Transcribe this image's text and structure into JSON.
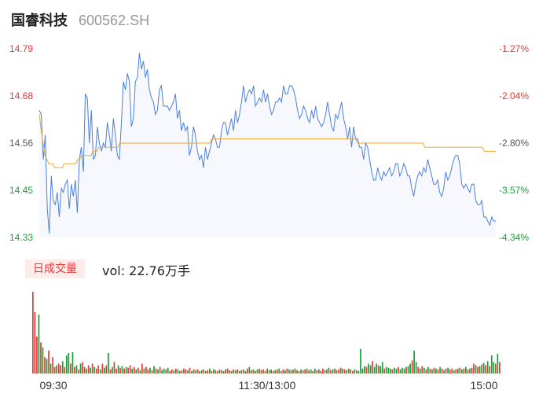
{
  "stock": {
    "name": "国睿科技",
    "code": "600562.SH"
  },
  "chart_data": [
    {
      "type": "line",
      "title": "",
      "y_left_ticks": [
        "14.79",
        "14.68",
        "14.56",
        "14.45",
        "14.33"
      ],
      "y_right_ticks": [
        "-1.27%",
        "-2.04%",
        "-2.80%",
        "-3.57%",
        "-4.34%"
      ],
      "ylim": [
        14.33,
        14.79
      ],
      "series": [
        {
          "color": "#4a7fe0",
          "values": [
            14.64,
            14.63,
            14.52,
            14.58,
            14.4,
            14.34,
            14.48,
            14.42,
            14.41,
            14.44,
            14.38,
            14.45,
            14.44,
            14.46,
            14.47,
            14.4,
            14.46,
            14.43,
            14.47,
            14.39,
            14.52,
            14.55,
            14.49,
            14.68,
            14.67,
            14.56,
            14.64,
            14.52,
            14.53,
            14.6,
            14.56,
            14.54,
            14.56,
            14.55,
            14.61,
            14.58,
            14.54,
            14.62,
            14.58,
            14.53,
            14.52,
            14.61,
            14.71,
            14.69,
            14.73,
            14.71,
            14.6,
            14.62,
            14.71,
            14.72,
            14.78,
            14.74,
            14.76,
            14.72,
            14.74,
            14.69,
            14.67,
            14.66,
            14.63,
            14.64,
            14.69,
            14.7,
            14.65,
            14.65,
            14.65,
            14.64,
            14.65,
            14.66,
            14.68,
            14.62,
            14.64,
            14.59,
            14.61,
            14.59,
            14.6,
            14.53,
            14.55,
            14.6,
            14.58,
            14.54,
            14.52,
            14.53,
            14.5,
            14.55,
            14.52,
            14.54,
            14.56,
            14.58,
            14.57,
            14.55,
            14.55,
            14.59,
            14.61,
            14.61,
            14.58,
            14.6,
            14.62,
            14.59,
            14.64,
            14.61,
            14.63,
            14.66,
            14.7,
            14.66,
            14.68,
            14.69,
            14.68,
            14.7,
            14.65,
            14.66,
            14.67,
            14.66,
            14.69,
            14.66,
            14.68,
            14.65,
            14.63,
            14.64,
            14.66,
            14.66,
            14.67,
            14.66,
            14.7,
            14.68,
            14.68,
            14.7,
            14.7,
            14.69,
            14.67,
            14.64,
            14.62,
            14.63,
            14.65,
            14.64,
            14.62,
            14.61,
            14.64,
            14.62,
            14.65,
            14.62,
            14.61,
            14.6,
            14.61,
            14.63,
            14.66,
            14.63,
            14.6,
            14.59,
            14.63,
            14.62,
            14.64,
            14.66,
            14.62,
            14.6,
            14.57,
            14.6,
            14.55,
            14.6,
            14.57,
            14.57,
            14.55,
            14.55,
            14.52,
            14.56,
            14.55,
            14.52,
            14.49,
            14.47,
            14.47,
            14.5,
            14.48,
            14.47,
            14.49,
            14.48,
            14.49,
            14.5,
            14.48,
            14.49,
            14.51,
            14.51,
            14.48,
            14.49,
            14.51,
            14.5,
            14.48,
            14.48,
            14.45,
            14.43,
            14.46,
            14.48,
            14.49,
            14.48,
            14.5,
            14.49,
            14.52,
            14.5,
            14.48,
            14.46,
            14.46,
            14.47,
            14.44,
            14.43,
            14.45,
            14.49,
            14.47,
            14.48,
            14.5,
            14.52,
            14.53,
            14.53,
            14.51,
            14.46,
            14.45,
            14.46,
            14.45,
            14.44,
            14.46,
            14.46,
            14.42,
            14.41,
            14.41,
            14.42,
            14.38,
            14.38,
            14.37,
            14.36,
            14.38,
            14.37,
            14.37
          ]
        },
        {
          "color": "#f5a623",
          "values": [
            14.63,
            14.59,
            14.56,
            14.53,
            14.52,
            14.51,
            14.51,
            14.51,
            14.5,
            14.5,
            14.5,
            14.5,
            14.5,
            14.51,
            14.51,
            14.51,
            14.51,
            14.51,
            14.51,
            14.51,
            14.52,
            14.52,
            14.53,
            14.53,
            14.53,
            14.53,
            14.53,
            14.53,
            14.54,
            14.54,
            14.54,
            14.55,
            14.55,
            14.55,
            14.55,
            14.55,
            14.55,
            14.55,
            14.55,
            14.55,
            14.55,
            14.55,
            14.56,
            14.56,
            14.56,
            14.56,
            14.56,
            14.56,
            14.56,
            14.56,
            14.56,
            14.56,
            14.56,
            14.56,
            14.56,
            14.56,
            14.56,
            14.56,
            14.56,
            14.56,
            14.56,
            14.56,
            14.56,
            14.56,
            14.56,
            14.56,
            14.56,
            14.56,
            14.56,
            14.56,
            14.56,
            14.56,
            14.56,
            14.56,
            14.56,
            14.56,
            14.56,
            14.56,
            14.56,
            14.56,
            14.56,
            14.56,
            14.56,
            14.56,
            14.56,
            14.56,
            14.56,
            14.56,
            14.56,
            14.56,
            14.57,
            14.57,
            14.57,
            14.57,
            14.57,
            14.57,
            14.57,
            14.57,
            14.57,
            14.57,
            14.57,
            14.57,
            14.57,
            14.57,
            14.57,
            14.57,
            14.57,
            14.57,
            14.57,
            14.57,
            14.57,
            14.57,
            14.57,
            14.57,
            14.57,
            14.57,
            14.57,
            14.57,
            14.57,
            14.57,
            14.57,
            14.57,
            14.57,
            14.57,
            14.57,
            14.57,
            14.57,
            14.57,
            14.57,
            14.57,
            14.57,
            14.57,
            14.57,
            14.57,
            14.57,
            14.57,
            14.57,
            14.57,
            14.57,
            14.57,
            14.57,
            14.57,
            14.57,
            14.57,
            14.57,
            14.57,
            14.57,
            14.57,
            14.57,
            14.57,
            14.57,
            14.57,
            14.57,
            14.57,
            14.57,
            14.57,
            14.57,
            14.57,
            14.57,
            14.57,
            14.57,
            14.57,
            14.57,
            14.57,
            14.57,
            14.57,
            14.56,
            14.56,
            14.56,
            14.56,
            14.56,
            14.56,
            14.56,
            14.56,
            14.56,
            14.56,
            14.56,
            14.56,
            14.56,
            14.56,
            14.56,
            14.56,
            14.56,
            14.56,
            14.56,
            14.56,
            14.56,
            14.56,
            14.56,
            14.56,
            14.56,
            14.56,
            14.56,
            14.56,
            14.56,
            14.56,
            14.56,
            14.56,
            14.56,
            14.56,
            14.56,
            14.55,
            14.55,
            14.55,
            14.55,
            14.55,
            14.55,
            14.55,
            14.55,
            14.55,
            14.55,
            14.55,
            14.55,
            14.55,
            14.55,
            14.55,
            14.55,
            14.55,
            14.55,
            14.55,
            14.55,
            14.55,
            14.55,
            14.55,
            14.55,
            14.55,
            14.55,
            14.55,
            14.55,
            14.55,
            14.55,
            14.55,
            14.54,
            14.54,
            14.54,
            14.54,
            14.54,
            14.54,
            14.54
          ]
        }
      ]
    },
    {
      "type": "bar",
      "title": "",
      "x_ticks": [
        "09:30",
        "11:30/13:00",
        "15:00"
      ],
      "ylim": [
        0,
        1
      ],
      "up_color": "#e53935",
      "down_color": "#18a038",
      "volumes": [
        1.0,
        0.75,
        0.45,
        0.72,
        0.38,
        0.32,
        0.2,
        0.18,
        0.28,
        0.12,
        0.2,
        0.08,
        0.1,
        0.12,
        0.1,
        0.15,
        0.08,
        0.22,
        0.25,
        0.12,
        0.26,
        0.08,
        0.1,
        0.05,
        0.12,
        0.14,
        0.08,
        0.06,
        0.1,
        0.07,
        0.12,
        0.08,
        0.06,
        0.1,
        0.05,
        0.12,
        0.07,
        0.1,
        0.25,
        0.05,
        0.08,
        0.14,
        0.06,
        0.1,
        0.07,
        0.09,
        0.06,
        0.08,
        0.07,
        0.1,
        0.06,
        0.08,
        0.05,
        0.07,
        0.04,
        0.12,
        0.06,
        0.08,
        0.05,
        0.07,
        0.04,
        0.09,
        0.06,
        0.05,
        0.08,
        0.04,
        0.06,
        0.05,
        0.07,
        0.03,
        0.05,
        0.04,
        0.06,
        0.05,
        0.03,
        0.04,
        0.06,
        0.05,
        0.04,
        0.07,
        0.03,
        0.05,
        0.04,
        0.05,
        0.03,
        0.04,
        0.05,
        0.03,
        0.04,
        0.06,
        0.03,
        0.05,
        0.04,
        0.03,
        0.05,
        0.04,
        0.03,
        0.05,
        0.06,
        0.04,
        0.03,
        0.05,
        0.04,
        0.05,
        0.03,
        0.04,
        0.05,
        0.03,
        0.06,
        0.08,
        0.04,
        0.05,
        0.03,
        0.05,
        0.06,
        0.04,
        0.05,
        0.03,
        0.06,
        0.04,
        0.05,
        0.03,
        0.04,
        0.05,
        0.06,
        0.03,
        0.05,
        0.04,
        0.06,
        0.05,
        0.04,
        0.05,
        0.06,
        0.04,
        0.03,
        0.05,
        0.04,
        0.05,
        0.06,
        0.04,
        0.05,
        0.03,
        0.06,
        0.04,
        0.05,
        0.03,
        0.06,
        0.04,
        0.05,
        0.07,
        0.04,
        0.05,
        0.06,
        0.04,
        0.05,
        0.07,
        0.06,
        0.05,
        0.04,
        0.06,
        0.05,
        0.03,
        0.05,
        0.04,
        0.03,
        0.3,
        0.06,
        0.09,
        0.08,
        0.12,
        0.1,
        0.15,
        0.08,
        0.12,
        0.1,
        0.09,
        0.14,
        0.06,
        0.08,
        0.07,
        0.06,
        0.05,
        0.07,
        0.06,
        0.08,
        0.05,
        0.07,
        0.06,
        0.08,
        0.09,
        0.12,
        0.16,
        0.28,
        0.14,
        0.08,
        0.06,
        0.09,
        0.07,
        0.05,
        0.08,
        0.06,
        0.05,
        0.07,
        0.06,
        0.05,
        0.08,
        0.06,
        0.04,
        0.06,
        0.07,
        0.05,
        0.06,
        0.04,
        0.05,
        0.06,
        0.07,
        0.05,
        0.06,
        0.08,
        0.05,
        0.06,
        0.07,
        0.12,
        0.1,
        0.08,
        0.09,
        0.11,
        0.13,
        0.1,
        0.15,
        0.09,
        0.22,
        0.14,
        0.12,
        0.24,
        0.14
      ],
      "up_flags": [
        1,
        1,
        1,
        0,
        1,
        0,
        1,
        0,
        1,
        0,
        1,
        1,
        0,
        1,
        1,
        0,
        1,
        0,
        0,
        1,
        0,
        1,
        0,
        1,
        0,
        1,
        1,
        0,
        1,
        0,
        1,
        0,
        1,
        1,
        0,
        1,
        0,
        1,
        0,
        1,
        0,
        1,
        1,
        0,
        1,
        0,
        1,
        0,
        1,
        1,
        0,
        1,
        0,
        1,
        0,
        1,
        0,
        1,
        1,
        0,
        1,
        0,
        1,
        0,
        1,
        0,
        0,
        1,
        0,
        1,
        1,
        0,
        1,
        0,
        1,
        0,
        1,
        1,
        0,
        1,
        0,
        1,
        0,
        1,
        0,
        1,
        0,
        1,
        1,
        0,
        1,
        0,
        1,
        0,
        1,
        0,
        1,
        0,
        1,
        1,
        0,
        1,
        0,
        1,
        0,
        1,
        0,
        1,
        1,
        0,
        1,
        0,
        1,
        0,
        1,
        0,
        1,
        1,
        0,
        1,
        0,
        1,
        0,
        1,
        0,
        1,
        1,
        0,
        1,
        0,
        1,
        0,
        1,
        0,
        1,
        0,
        1,
        1,
        0,
        1,
        0,
        1,
        0,
        1,
        0,
        1,
        1,
        0,
        1,
        0,
        1,
        0,
        1,
        0,
        1,
        1,
        0,
        1,
        0,
        1,
        0,
        1,
        0,
        1,
        0,
        0,
        0,
        0,
        1,
        0,
        0,
        1,
        0,
        0,
        1,
        0,
        0,
        1,
        0,
        0,
        0,
        1,
        0,
        0,
        1,
        0,
        0,
        0,
        1,
        0,
        0,
        1,
        0,
        0,
        1,
        0,
        1,
        0,
        1,
        0,
        1,
        0,
        1,
        0,
        1,
        0,
        1,
        0,
        1,
        0,
        1,
        1,
        0,
        1,
        0,
        1,
        0,
        1,
        0,
        1,
        0,
        1,
        1,
        0,
        1,
        0,
        1,
        0,
        1,
        0,
        1,
        0,
        0,
        1,
        0,
        1,
        0,
        0,
        1,
        0,
        1,
        0,
        0,
        1
      ]
    }
  ],
  "volume": {
    "badge": "日成交量",
    "label": "vol: 22.76万手"
  }
}
